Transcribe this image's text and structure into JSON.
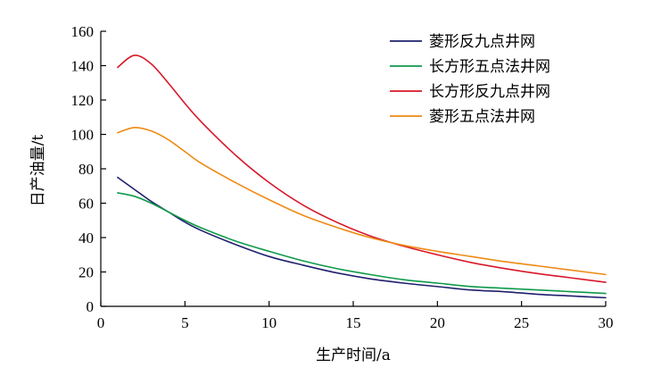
{
  "chart_data": {
    "type": "line",
    "title": "",
    "xlabel": "生产时间/a",
    "ylabel": "日产油量/t",
    "xlim": [
      0,
      30
    ],
    "ylim": [
      0,
      160
    ],
    "xticks": [
      0,
      5,
      10,
      15,
      20,
      25,
      30
    ],
    "yticks": [
      0,
      20,
      40,
      60,
      80,
      100,
      120,
      140,
      160
    ],
    "grid": false,
    "legend_position": "top-right",
    "x": [
      1,
      2,
      3,
      4,
      5,
      6,
      8,
      10,
      12,
      14,
      16,
      18,
      20,
      22,
      24,
      26,
      28,
      30
    ],
    "series": [
      {
        "name": "菱形反九点井网",
        "color": "#1f1f6e",
        "values": [
          75,
          68,
          61,
          55,
          49,
          44,
          36,
          29,
          24,
          19.5,
          16,
          13.5,
          11.5,
          9.5,
          8.5,
          7,
          6,
          5
        ]
      },
      {
        "name": "长方形五点法井网",
        "color": "#0f9a4a",
        "values": [
          66,
          64,
          60,
          55,
          50,
          45.5,
          38,
          32,
          26.5,
          22,
          18.5,
          15.5,
          13.5,
          11.5,
          10.5,
          9.5,
          8.5,
          7.5
        ]
      },
      {
        "name": "长方形反九点井网",
        "color": "#d8182a",
        "values": [
          139,
          146,
          141,
          130,
          118,
          107,
          88,
          72,
          59,
          49,
          41,
          35,
          30,
          25.5,
          22,
          19,
          16.5,
          14
        ]
      },
      {
        "name": "菱形五点法井网",
        "color": "#ee8a14",
        "values": [
          101,
          104,
          102,
          97,
          90,
          83,
          72,
          62,
          53,
          46,
          40,
          35.5,
          32,
          29,
          26,
          23.5,
          21,
          18.5
        ]
      }
    ]
  }
}
